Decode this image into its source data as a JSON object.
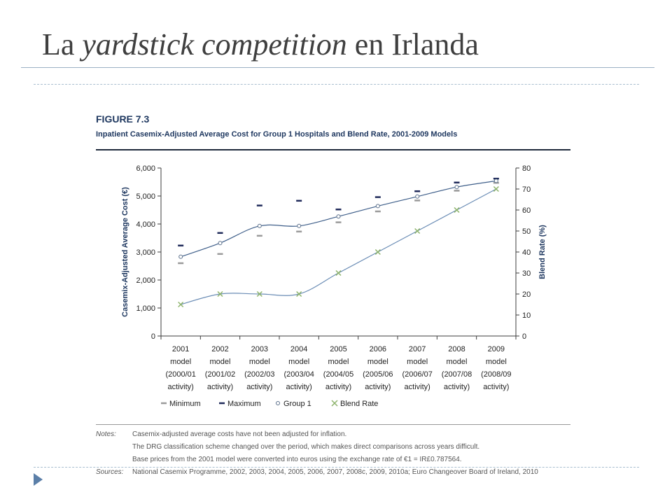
{
  "slide": {
    "title_prefix": "La ",
    "title_italic": "yardstick competition",
    "title_suffix": " en Irlanda"
  },
  "figure": {
    "label": "FIGURE 7.3",
    "subtitle": "Inpatient Casemix-Adjusted Average Cost for Group 1 Hospitals and Blend Rate, 2001-2009 Models"
  },
  "chart_data": {
    "type": "line",
    "x_categories": [
      [
        "2001",
        "model",
        "(2000/01",
        "activity)"
      ],
      [
        "2002",
        "model",
        "(2001/02",
        "activity)"
      ],
      [
        "2003",
        "model",
        "(2002/03",
        "activity)"
      ],
      [
        "2004",
        "model",
        "(2003/04",
        "activity)"
      ],
      [
        "2005",
        "model",
        "(2004/05",
        "activity)"
      ],
      [
        "2006",
        "model",
        "(2005/06",
        "activity)"
      ],
      [
        "2007",
        "model",
        "(2006/07",
        "activity)"
      ],
      [
        "2008",
        "model",
        "(2007/08",
        "activity)"
      ],
      [
        "2009",
        "model",
        "(2008/09",
        "activity)"
      ]
    ],
    "y_left": {
      "label": "Casemix-Adjusted Average Cost (€)",
      "range": [
        0,
        6000
      ],
      "ticks": [
        "0",
        "1,000",
        "2,000",
        "3,000",
        "4,000",
        "5,000",
        "6,000"
      ]
    },
    "y_right": {
      "label": "Blend Rate (%)",
      "range": [
        0,
        80
      ],
      "ticks": [
        "0",
        "10",
        "20",
        "30",
        "40",
        "50",
        "60",
        "70",
        "80"
      ]
    },
    "series": [
      {
        "name": "Minimum",
        "axis": "left",
        "marker": "dash",
        "color": "#9a9a9a",
        "values": [
          2600,
          2930,
          3580,
          3730,
          4060,
          4450,
          4840,
          5190,
          5470
        ]
      },
      {
        "name": "Maximum",
        "axis": "left",
        "marker": "dash",
        "color": "#1f2a5a",
        "values": [
          3230,
          3680,
          4660,
          4830,
          4520,
          4960,
          5170,
          5480,
          5620
        ]
      },
      {
        "name": "Group 1",
        "axis": "left",
        "marker": "circle",
        "color": "#5a6f8a",
        "values": [
          2830,
          3320,
          3930,
          3930,
          4270,
          4640,
          4980,
          5320,
          5540
        ]
      },
      {
        "name": "Blend Rate",
        "axis": "right",
        "marker": "x",
        "color": "#8db36b",
        "values": [
          15,
          20,
          20,
          20,
          30,
          40,
          50,
          60,
          70
        ]
      }
    ],
    "legend_position": "bottom"
  },
  "notes": {
    "notes_head": "Notes:",
    "lines": [
      "Casemix-adjusted average costs have not been adjusted for inflation.",
      "The DRG classification scheme changed over the period, which makes direct comparisons across years difficult.",
      "Base prices from the 2001 model were converted into euros using the exchange rate of €1 = IR£0.787564."
    ],
    "sources_head": "Sources:",
    "sources": "National Casemix Programme, 2002, 2003, 2004, 2005, 2006, 2007, 2008c, 2009, 2010a; Euro Changeover Board of Ireland, 2010"
  },
  "colors": {
    "axis": "#3d3d3d",
    "left_axis_text": "#1f3860",
    "group1_line": "#3f5f8a",
    "blend_line": "#6a8cb5",
    "marker_blue": "#5b7fa8"
  }
}
